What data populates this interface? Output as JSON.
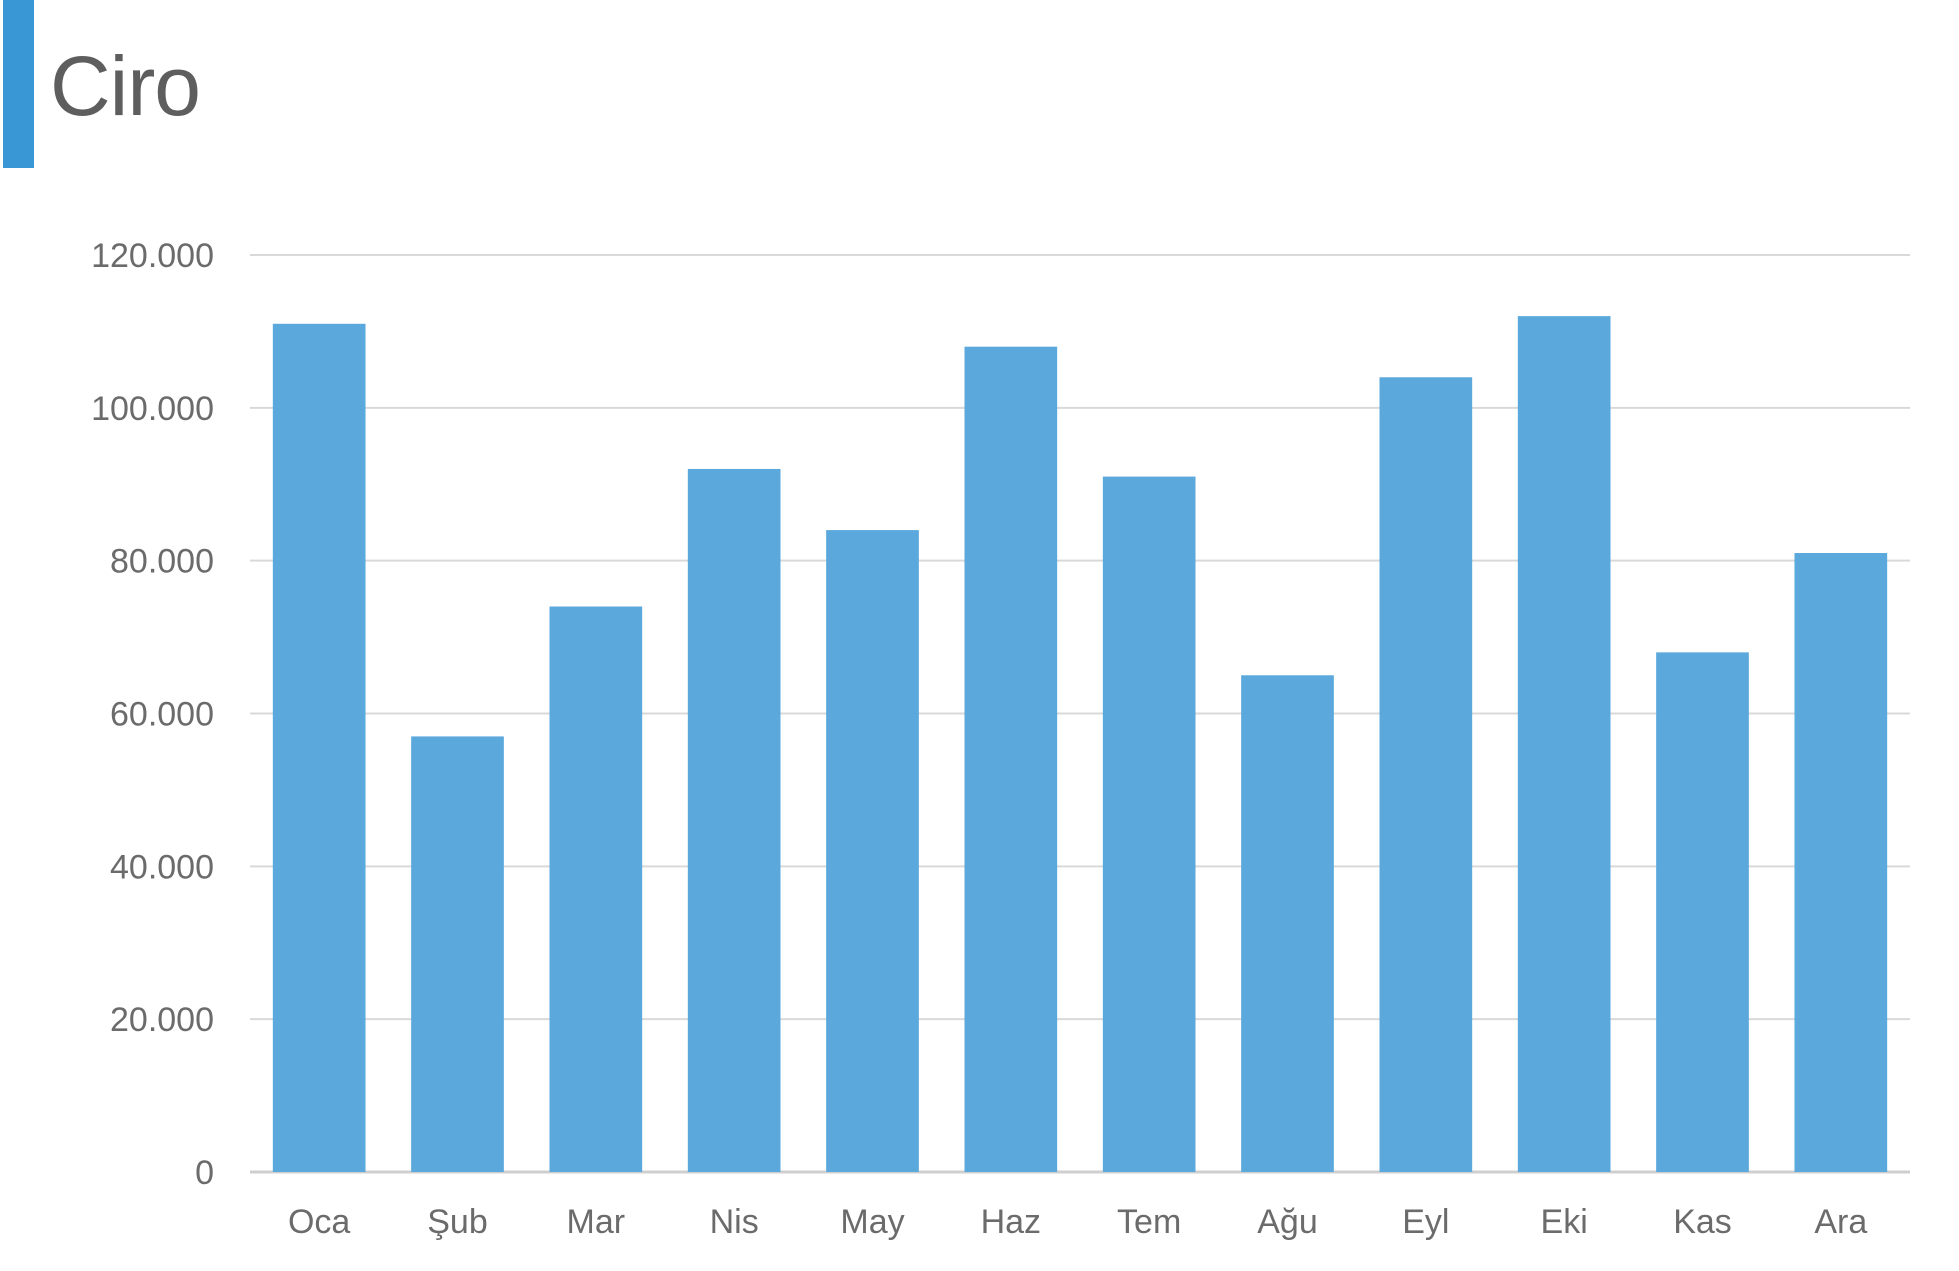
{
  "chart_data": {
    "type": "bar",
    "title": "Ciro",
    "xlabel": "",
    "ylabel": "",
    "categories": [
      "Oca",
      "Şub",
      "Mar",
      "Nis",
      "May",
      "Haz",
      "Tem",
      "Ağu",
      "Eyl",
      "Eki",
      "Kas",
      "Ara"
    ],
    "values": [
      111000,
      57000,
      74000,
      92000,
      84000,
      108000,
      91000,
      65000,
      104000,
      112000,
      68000,
      81000
    ],
    "ylim": [
      0,
      120000
    ],
    "yticks": [
      0,
      20000,
      40000,
      60000,
      80000,
      100000,
      120000
    ],
    "ytick_labels": [
      "0",
      "20.000",
      "40.000",
      "60.000",
      "80.000",
      "100.000",
      "120.000"
    ],
    "grid": true,
    "legend": "none",
    "colors": {
      "bar": "#5ba8dc",
      "accent": "#3a97d6",
      "grid": "#d9d9d9",
      "text": "#6b6b6b"
    }
  }
}
